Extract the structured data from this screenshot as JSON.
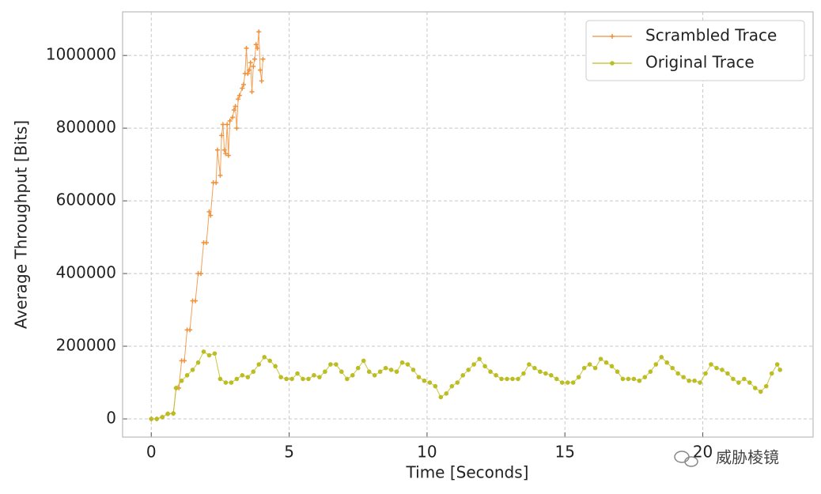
{
  "chart_data": {
    "type": "line",
    "xlabel": "Time [Seconds]",
    "ylabel": "Average Throughput [Bits]",
    "watermark": "威胁棱镜",
    "xlim": [
      -1.04,
      24
    ],
    "ylim": [
      -50000,
      1120000
    ],
    "xticks": [
      0,
      5,
      10,
      15,
      20
    ],
    "yticks": [
      0,
      200000,
      400000,
      600000,
      800000,
      1000000
    ],
    "grid": true,
    "legend": "upper right",
    "series": [
      {
        "name": "Scrambled Trace",
        "color": "#f0913a",
        "x": [
          0,
          0.2,
          0.4,
          0.6,
          0.8,
          0.9,
          1.0,
          1.1,
          1.2,
          1.3,
          1.4,
          1.5,
          1.6,
          1.7,
          1.8,
          1.9,
          2.0,
          2.1,
          2.15,
          2.25,
          2.35,
          2.4,
          2.5,
          2.55,
          2.6,
          2.65,
          2.7,
          2.75,
          2.8,
          2.85,
          2.95,
          3.0,
          3.05,
          3.1,
          3.15,
          3.2,
          3.3,
          3.35,
          3.4,
          3.45,
          3.5,
          3.55,
          3.6,
          3.65,
          3.7,
          3.75,
          3.8,
          3.85,
          3.9,
          3.95,
          4.0,
          4.05
        ],
        "values": [
          0,
          0,
          5000,
          14000,
          15000,
          85000,
          85000,
          160000,
          160000,
          245000,
          245000,
          325000,
          325000,
          400000,
          400000,
          485000,
          485000,
          570000,
          560000,
          650000,
          650000,
          740000,
          670000,
          780000,
          810000,
          740000,
          730000,
          810000,
          725000,
          820000,
          830000,
          850000,
          860000,
          800000,
          880000,
          890000,
          910000,
          920000,
          950000,
          1020000,
          950000,
          960000,
          980000,
          900000,
          970000,
          990000,
          1030000,
          1020000,
          1065000,
          960000,
          930000,
          990000
        ]
      },
      {
        "name": "Original Trace",
        "color": "#bcbd22",
        "x": [
          0,
          0.2,
          0.4,
          0.6,
          0.8,
          0.9,
          1.1,
          1.3,
          1.5,
          1.7,
          1.9,
          2.1,
          2.3,
          2.5,
          2.7,
          2.9,
          3.1,
          3.3,
          3.5,
          3.7,
          3.9,
          4.1,
          4.3,
          4.5,
          4.7,
          4.9,
          5.1,
          5.3,
          5.5,
          5.7,
          5.9,
          6.1,
          6.3,
          6.5,
          6.7,
          6.9,
          7.1,
          7.3,
          7.5,
          7.7,
          7.9,
          8.1,
          8.3,
          8.5,
          8.7,
          8.9,
          9.1,
          9.3,
          9.5,
          9.7,
          9.9,
          10.1,
          10.3,
          10.5,
          10.7,
          10.9,
          11.1,
          11.3,
          11.5,
          11.7,
          11.9,
          12.1,
          12.3,
          12.5,
          12.7,
          12.9,
          13.1,
          13.3,
          13.5,
          13.7,
          13.9,
          14.1,
          14.3,
          14.5,
          14.7,
          14.9,
          15.1,
          15.3,
          15.5,
          15.7,
          15.9,
          16.1,
          16.3,
          16.5,
          16.7,
          16.9,
          17.1,
          17.3,
          17.5,
          17.7,
          17.9,
          18.1,
          18.3,
          18.5,
          18.7,
          18.9,
          19.1,
          19.3,
          19.5,
          19.7,
          19.9,
          20.1,
          20.3,
          20.5,
          20.7,
          20.9,
          21.1,
          21.3,
          21.5,
          21.7,
          21.9,
          22.1,
          22.3,
          22.5,
          22.7,
          22.8
        ],
        "values": [
          0,
          0,
          5000,
          14000,
          15000,
          85000,
          105000,
          120000,
          135000,
          155000,
          185000,
          175000,
          180000,
          110000,
          100000,
          100000,
          110000,
          120000,
          115000,
          130000,
          150000,
          170000,
          160000,
          145000,
          115000,
          110000,
          110000,
          125000,
          110000,
          110000,
          120000,
          115000,
          130000,
          150000,
          150000,
          130000,
          110000,
          120000,
          140000,
          160000,
          130000,
          120000,
          130000,
          140000,
          135000,
          130000,
          155000,
          150000,
          135000,
          115000,
          105000,
          100000,
          90000,
          60000,
          70000,
          90000,
          100000,
          120000,
          135000,
          150000,
          165000,
          145000,
          130000,
          120000,
          110000,
          110000,
          110000,
          110000,
          125000,
          150000,
          140000,
          130000,
          125000,
          120000,
          110000,
          100000,
          100000,
          100000,
          115000,
          140000,
          150000,
          140000,
          165000,
          155000,
          145000,
          130000,
          110000,
          110000,
          110000,
          105000,
          115000,
          130000,
          150000,
          170000,
          155000,
          140000,
          125000,
          115000,
          105000,
          105000,
          100000,
          125000,
          150000,
          140000,
          135000,
          125000,
          110000,
          100000,
          110000,
          100000,
          85000,
          75000,
          90000,
          125000,
          150000,
          135000
        ]
      }
    ]
  }
}
